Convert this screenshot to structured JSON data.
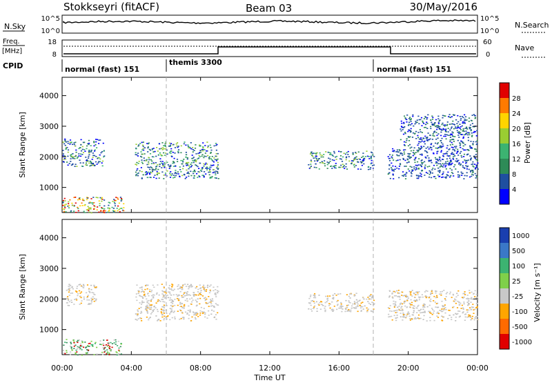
{
  "header": {
    "station": "Stokkseyri (fitACF)",
    "beam": "Beam 03",
    "date": "30/May/2016"
  },
  "strip1": {
    "left_label": "N.Sky",
    "left_ticks": [
      "10^5",
      "10^0"
    ],
    "right_label": "N.Search",
    "right_ticks": [
      "10^5",
      "10^0"
    ]
  },
  "strip2": {
    "left_label_1": "Freq.",
    "left_label_2": "[MHz]",
    "left_ticks": [
      "18",
      "8"
    ],
    "right_label": "Nave",
    "right_ticks": [
      "60",
      "0"
    ]
  },
  "cpid": {
    "label": "CPID",
    "modes": [
      "normal (fast) 151",
      "themis 3300",
      "normal (fast) 151"
    ]
  },
  "time_axis": {
    "label": "Time UT",
    "ticks": [
      "00:00",
      "04:00",
      "08:00",
      "12:00",
      "16:00",
      "20:00",
      "00:00"
    ]
  },
  "colors": {
    "mode_switch_dash": "#b0b0b0",
    "ground_scatter": "#c8c8c8"
  },
  "chart_data": [
    {
      "type": "heatmap",
      "panel": "power",
      "ylabel": "Slant Range [km]",
      "ylim": [
        180,
        4600
      ],
      "y_ticks": [
        "1000",
        "2000",
        "3000",
        "4000"
      ],
      "xlim": [
        0,
        24
      ],
      "colorbar": {
        "label": "Power [dB]",
        "ticks": [
          "28",
          "24",
          "20",
          "16",
          "12",
          "8",
          "4"
        ],
        "colors": [
          "#e00000",
          "#ff7a00",
          "#ffd400",
          "#9acd32",
          "#3cb371",
          "#2e8b57",
          "#1f4fa0",
          "#0000ff"
        ]
      },
      "echo_regions": [
        {
          "t0": 0.0,
          "t1": 2.4,
          "r0": 1700,
          "r1": 2600,
          "level": "medium"
        },
        {
          "t0": 0.0,
          "t1": 3.6,
          "r0": 180,
          "r1": 700,
          "level": "high"
        },
        {
          "t0": 4.2,
          "t1": 9.0,
          "r0": 1300,
          "r1": 2500,
          "level": "medium"
        },
        {
          "t0": 14.2,
          "t1": 18.0,
          "r0": 1600,
          "r1": 2200,
          "level": "medium"
        },
        {
          "t0": 18.8,
          "t1": 24.0,
          "r0": 1300,
          "r1": 2300,
          "level": "low"
        },
        {
          "t0": 19.5,
          "t1": 24.0,
          "r0": 2300,
          "r1": 3400,
          "level": "low"
        }
      ]
    },
    {
      "type": "heatmap",
      "panel": "velocity",
      "ylabel": "Slant Range [km]",
      "ylim": [
        180,
        4600
      ],
      "y_ticks": [
        "1000",
        "2000",
        "3000",
        "4000"
      ],
      "xlim": [
        0,
        24
      ],
      "colorbar": {
        "label": "Velocity [m s⁻¹]",
        "ticks": [
          "1000",
          "500",
          "100",
          "25",
          "-25",
          "-100",
          "-500",
          "-1000"
        ],
        "colors": [
          "#1a3faf",
          "#3a78c8",
          "#3cb371",
          "#7fd04a",
          "#c8c8c8",
          "#ffa500",
          "#ff6a00",
          "#e00000"
        ]
      },
      "echo_regions": [
        {
          "t0": 0.2,
          "t1": 2.0,
          "r0": 1800,
          "r1": 2500,
          "level": "ground"
        },
        {
          "t0": 4.2,
          "t1": 9.0,
          "r0": 1300,
          "r1": 2500,
          "level": "ground"
        },
        {
          "t0": 14.2,
          "t1": 18.0,
          "r0": 1600,
          "r1": 2200,
          "level": "ground"
        },
        {
          "t0": 18.8,
          "t1": 24.0,
          "r0": 1300,
          "r1": 2300,
          "level": "ground"
        },
        {
          "t0": 0.0,
          "t1": 3.4,
          "r0": 180,
          "r1": 700,
          "level": "positive"
        }
      ]
    }
  ]
}
